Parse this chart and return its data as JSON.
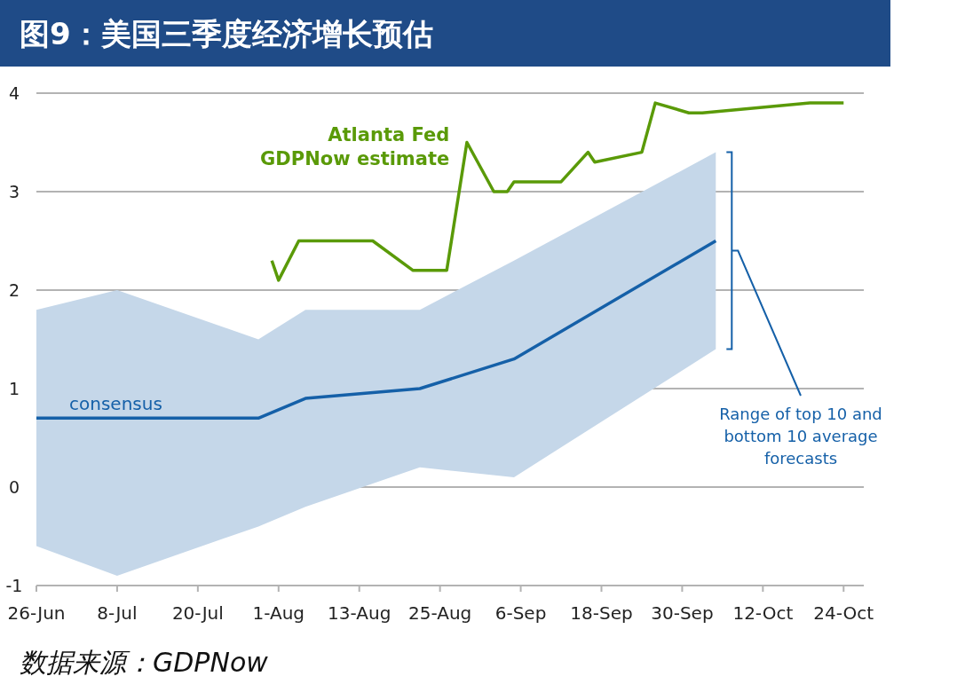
{
  "chart_data": {
    "type": "line",
    "title": "图9：美国三季度经济增长预估",
    "xlim": [
      "--06-26",
      "--10-27"
    ],
    "ylim": [
      -1,
      4
    ],
    "yticks": [
      -1,
      0,
      1,
      2,
      3,
      4
    ],
    "xticks": [
      {
        "value": "--06-26",
        "label": "26-Jun"
      },
      {
        "value": "--07-08",
        "label": "8-Jul"
      },
      {
        "value": "--07-20",
        "label": "20-Jul"
      },
      {
        "value": "--08-01",
        "label": "1-Aug"
      },
      {
        "value": "--08-13",
        "label": "13-Aug"
      },
      {
        "value": "--08-25",
        "label": "25-Aug"
      },
      {
        "value": "--09-06",
        "label": "6-Sep"
      },
      {
        "value": "--09-18",
        "label": "18-Sep"
      },
      {
        "value": "--09-30",
        "label": "30-Sep"
      },
      {
        "value": "--10-12",
        "label": "12-Oct"
      },
      {
        "value": "--10-24",
        "label": "24-Oct"
      }
    ],
    "grid": "y",
    "series": [
      {
        "name": "consensus",
        "color": "#1560a8",
        "x": [
          "--06-26",
          "--07-08",
          "--07-29",
          "--08-05",
          "--08-22",
          "--09-05",
          "--10-05"
        ],
        "values": [
          0.7,
          0.7,
          0.7,
          0.9,
          1.0,
          1.3,
          2.5
        ],
        "lower": [
          -0.6,
          -0.9,
          -0.4,
          -0.2,
          0.2,
          0.1,
          1.4
        ],
        "upper": [
          1.8,
          2.0,
          1.5,
          1.8,
          1.8,
          2.3,
          3.4
        ]
      },
      {
        "name": "Atlanta Fed GDPNow estimate",
        "color": "#5a9a08",
        "x": [
          "--07-31",
          "--08-01",
          "--08-04",
          "--08-15",
          "--08-21",
          "--08-26",
          "--08-29",
          "--09-02",
          "--09-04",
          "--09-05",
          "--09-12",
          "--09-16",
          "--09-17",
          "--09-24",
          "--09-26",
          "--10-01",
          "--10-03",
          "--10-19",
          "--10-24"
        ],
        "values": [
          2.3,
          2.1,
          2.5,
          2.5,
          2.2,
          2.2,
          3.5,
          3.0,
          3.0,
          3.1,
          3.1,
          3.4,
          3.3,
          3.4,
          3.9,
          3.8,
          3.8,
          3.9,
          3.9
        ]
      }
    ],
    "annotations": [
      "Range of top 10 and bottom 10 average forecasts",
      "数据来源：GDPNow"
    ]
  }
}
